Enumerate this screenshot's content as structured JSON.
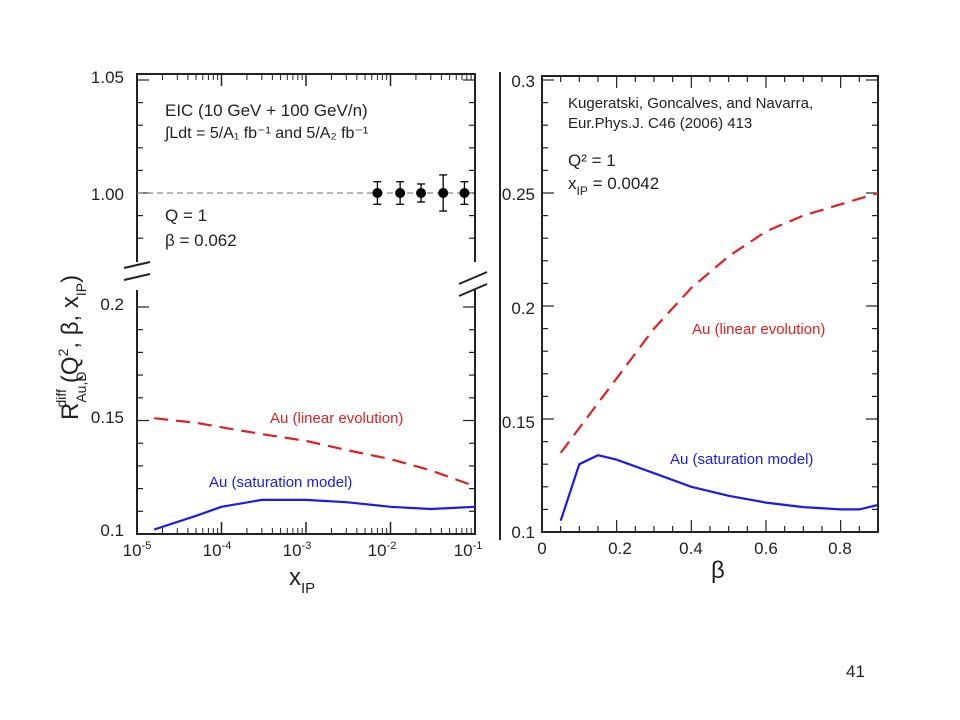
{
  "slide": {
    "page_number": "41"
  },
  "chart_data": [
    {
      "type": "line+scatter",
      "xscale": "log",
      "xlim": [
        1e-05,
        0.1
      ],
      "ylim_lower": [
        0.1,
        0.2
      ],
      "ylim_upper": [
        0.975,
        1.05
      ],
      "axis_break": true,
      "x_ticks": [
        "10-5",
        "10-4",
        "10-3",
        "10-2",
        "10-1"
      ],
      "y_ticks": [
        "1.05",
        "1.00",
        "0.2",
        "0.15",
        "0.1"
      ],
      "xlabel": {
        "main": "x",
        "sub": "IP"
      },
      "ylabel": {
        "main": "R",
        "sup": "diff",
        "sub": "Au,D",
        "args": "(Q",
        "args2": ", β, x",
        "sub2": "IP",
        "close": ")"
      },
      "annotation_title": "EIC (10 GeV + 100 GeV/n)",
      "annotation_lumi": "∫Ldt = 5/A₁ fb⁻¹ and 5/A₂ fb⁻¹",
      "annotation_q": "Q  = 1",
      "annotation_beta": "β = 0.062",
      "series": [
        {
          "name": "Au (linear evolution)",
          "color": "#e02020",
          "style": "dashed",
          "x": [
            1.6e-05,
            5e-05,
            0.0001,
            0.0003,
            0.001,
            0.003,
            0.01,
            0.03,
            0.1
          ],
          "y": [
            0.151,
            0.149,
            0.147,
            0.144,
            0.141,
            0.137,
            0.133,
            0.128,
            0.121
          ]
        },
        {
          "name": "Au (saturation model)",
          "color": "#1a1aee",
          "style": "solid",
          "x": [
            1.6e-05,
            5e-05,
            0.0001,
            0.0003,
            0.001,
            0.003,
            0.01,
            0.03,
            0.1
          ],
          "y": [
            0.102,
            0.108,
            0.112,
            0.115,
            0.115,
            0.114,
            0.112,
            0.111,
            0.112
          ]
        },
        {
          "name": "EIC pseudo-data",
          "color": "#000000",
          "style": "points",
          "x": [
            0.007,
            0.013,
            0.023,
            0.042,
            0.075
          ],
          "y": [
            1.0,
            1.0,
            1.0,
            1.0,
            1.0
          ],
          "err": [
            0.005,
            0.005,
            0.004,
            0.008,
            0.005
          ]
        }
      ],
      "reference_line": {
        "y": 1.0,
        "style": "dashed",
        "color": "#888888"
      }
    },
    {
      "type": "line",
      "xlim": [
        0,
        0.9
      ],
      "ylim": [
        0.1,
        0.3
      ],
      "x_ticks": [
        "0",
        "0.2",
        "0.4",
        "0.6",
        "0.8"
      ],
      "y_ticks": [
        "0.1",
        "0.15",
        "0.2",
        "0.25",
        "0.3"
      ],
      "xlabel": "β",
      "annotation_ref1": "Kugeratski, Goncalves, and Navarra,",
      "annotation_ref2": "Eur.Phys.J. C46 (2006) 413",
      "annotation_q": "Q² = 1",
      "annotation_x": {
        "main": "x",
        "sub": "IP",
        "rest": " = 0.0042"
      },
      "series": [
        {
          "name": "Au (linear evolution)",
          "color": "#e02020",
          "style": "dashed",
          "x": [
            0.05,
            0.1,
            0.2,
            0.3,
            0.4,
            0.5,
            0.6,
            0.7,
            0.8,
            0.9
          ],
          "y": [
            0.135,
            0.146,
            0.168,
            0.19,
            0.208,
            0.222,
            0.233,
            0.24,
            0.245,
            0.25
          ]
        },
        {
          "name": "Au (saturation model)",
          "color": "#1a1aee",
          "style": "solid",
          "x": [
            0.05,
            0.1,
            0.15,
            0.2,
            0.3,
            0.4,
            0.5,
            0.6,
            0.7,
            0.8,
            0.85,
            0.9
          ],
          "y": [
            0.105,
            0.13,
            0.134,
            0.132,
            0.126,
            0.12,
            0.116,
            0.113,
            0.111,
            0.11,
            0.11,
            0.112
          ]
        }
      ]
    }
  ]
}
